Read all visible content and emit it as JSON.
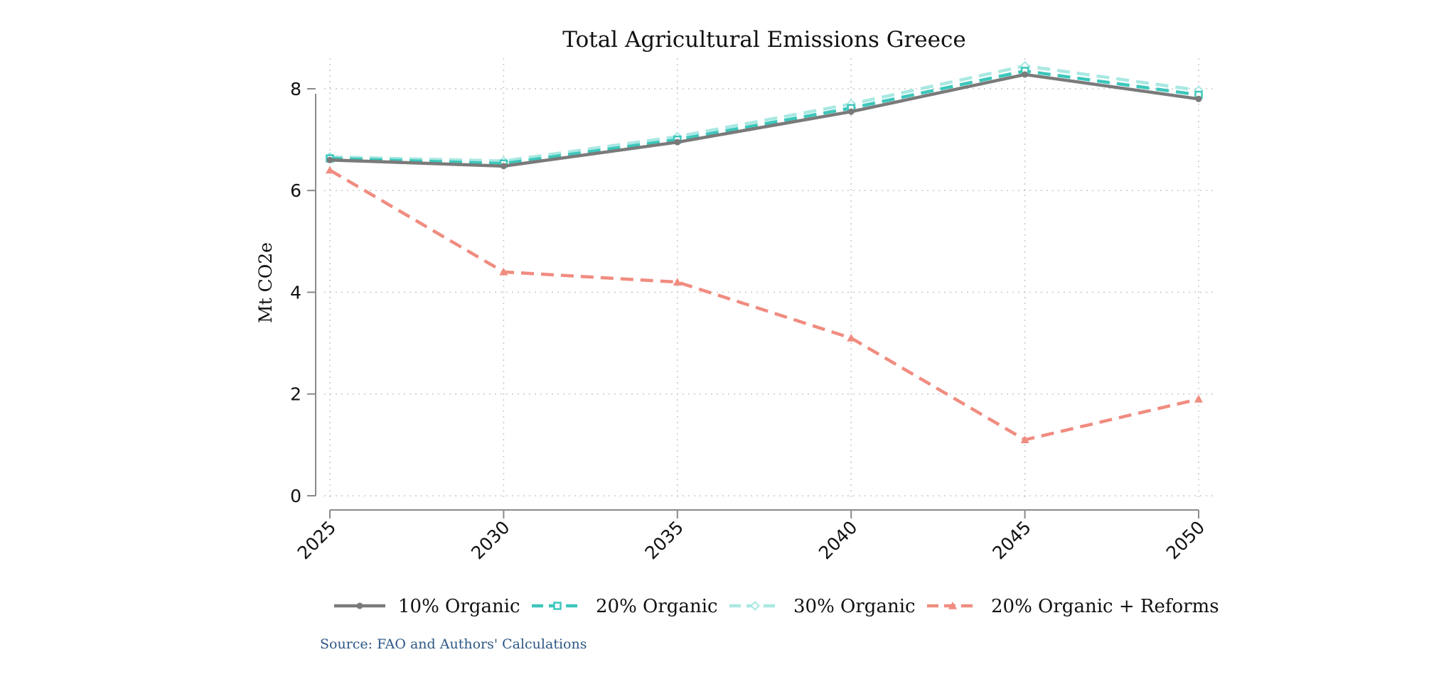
{
  "chart_data": {
    "type": "line",
    "title": "Total Agricultural Emissions Greece",
    "xlabel": "",
    "ylabel": "Mt CO2e",
    "x": [
      2025,
      2030,
      2035,
      2040,
      2045,
      2050
    ],
    "x_tick_labels": [
      "2025",
      "2030",
      "2035",
      "2040",
      "2045",
      "2050"
    ],
    "y_ticks": [
      0,
      2,
      4,
      6,
      8
    ],
    "y_tick_labels": [
      "0",
      "2",
      "4",
      "6",
      "8"
    ],
    "ylim": [
      0,
      8.6
    ],
    "grid": true,
    "legend_position": "bottom",
    "series": [
      {
        "name": "10% Organic",
        "values": [
          6.6,
          6.48,
          6.95,
          7.55,
          8.28,
          7.8
        ],
        "color": "#7a7a7a",
        "dashed": false,
        "marker": "circle",
        "opacity": 1
      },
      {
        "name": "20% Organic",
        "values": [
          6.63,
          6.53,
          7.0,
          7.62,
          8.35,
          7.88
        ],
        "color": "#3cc7bb",
        "dashed": true,
        "marker": "square",
        "opacity": 1
      },
      {
        "name": "30% Organic",
        "values": [
          6.66,
          6.58,
          7.06,
          7.7,
          8.45,
          7.97
        ],
        "color": "#a9e8e2",
        "dashed": true,
        "marker": "diamond",
        "opacity": 1
      },
      {
        "name": "20% Organic + Reforms",
        "values": [
          6.4,
          4.4,
          4.2,
          3.1,
          1.1,
          1.9
        ],
        "color": "#f08c80",
        "dashed": true,
        "marker": "triangle",
        "opacity": 1
      }
    ],
    "source": "Source: FAO and Authors' Calculations"
  }
}
